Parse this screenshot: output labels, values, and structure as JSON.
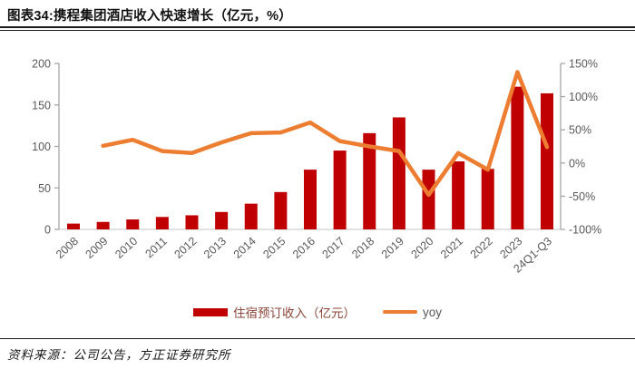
{
  "header": {
    "title": "图表34:携程集团酒店收入快速增长（亿元，%）"
  },
  "footer": {
    "source": "资料来源：公司公告，方正证券研究所"
  },
  "chart_data": {
    "type": "bar",
    "title": "携程集团酒店收入快速增长（亿元，%）",
    "categories": [
      "2008",
      "2009",
      "2010",
      "2011",
      "2012",
      "2013",
      "2014",
      "2015",
      "2016",
      "2017",
      "2018",
      "2019",
      "2020",
      "2021",
      "2022",
      "2023",
      "24Q1-Q3"
    ],
    "series": [
      {
        "name": "住宿预订收入（亿元）",
        "type": "bar",
        "axis": "left",
        "values": [
          7,
          9,
          12,
          15,
          17,
          21,
          31,
          45,
          72,
          95,
          116,
          135,
          72,
          82,
          73,
          172,
          164
        ]
      },
      {
        "name": "yoy",
        "type": "line",
        "axis": "right",
        "values": [
          null,
          26,
          35,
          18,
          15,
          31,
          45,
          46,
          61,
          33,
          25,
          18,
          -48,
          15,
          -10,
          137,
          24
        ]
      }
    ],
    "left_axis": {
      "range": [
        0,
        200
      ],
      "ticks": [
        0,
        50,
        100,
        150,
        200
      ],
      "tick_labels": [
        "0",
        "50",
        "100",
        "150",
        "200"
      ]
    },
    "right_axis": {
      "range": [
        -100,
        150
      ],
      "ticks": [
        -100,
        -50,
        0,
        50,
        100,
        150
      ],
      "tick_labels": [
        "-100%",
        "-50%",
        "0%",
        "50%",
        "100%",
        "150%"
      ]
    },
    "grid": false,
    "legend_position": "bottom",
    "colors": {
      "bar": "#C00000",
      "line": "#ED7D31",
      "axis_label": "#595959",
      "axis_line": "#A6A6A6",
      "baseline": "#D9D9D9",
      "legend_cjk_text": "#8C4639",
      "legend_yoy_text": "#595959"
    }
  }
}
